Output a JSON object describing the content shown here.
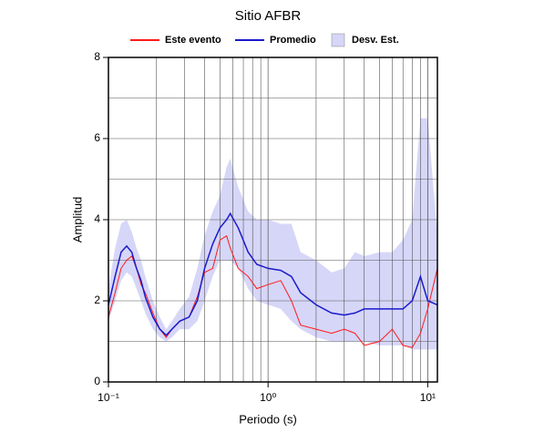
{
  "chart_data": {
    "type": "line",
    "title": "Sitio AFBR",
    "xlabel": "Periodo (s)",
    "ylabel": "Amplitud",
    "xscale": "log",
    "grid": true,
    "xlim": [
      0.1,
      11.5
    ],
    "ylim": [
      0,
      8
    ],
    "xticks": [
      {
        "value": 0.1,
        "label": "10⁻¹"
      },
      {
        "value": 1,
        "label": "10⁰"
      },
      {
        "value": 10,
        "label": "10¹"
      }
    ],
    "yticks": [
      0,
      2,
      4,
      6,
      8
    ],
    "x": [
      0.1,
      0.11,
      0.12,
      0.13,
      0.14,
      0.15,
      0.16,
      0.17,
      0.19,
      0.21,
      0.23,
      0.25,
      0.28,
      0.32,
      0.36,
      0.4,
      0.45,
      0.5,
      0.55,
      0.58,
      0.65,
      0.75,
      0.85,
      1.0,
      1.2,
      1.4,
      1.6,
      2.0,
      2.5,
      3.0,
      3.5,
      4.0,
      5,
      6,
      7,
      8,
      9,
      10,
      11.5
    ],
    "series": [
      {
        "name": "Este evento",
        "color": "#ff1a1a",
        "values": [
          1.6,
          2.2,
          2.8,
          3.0,
          3.1,
          2.8,
          2.4,
          2.2,
          1.7,
          1.3,
          1.1,
          1.3,
          1.5,
          1.6,
          2.1,
          2.7,
          2.8,
          3.5,
          3.6,
          3.3,
          2.8,
          2.6,
          2.3,
          2.4,
          2.5,
          2.0,
          1.4,
          1.3,
          1.2,
          1.3,
          1.2,
          0.9,
          1.0,
          1.3,
          0.9,
          0.85,
          1.2,
          1.8,
          2.8
        ]
      },
      {
        "name": "Promedio",
        "color": "#1a1acc",
        "values": [
          1.9,
          2.6,
          3.2,
          3.35,
          3.2,
          2.8,
          2.5,
          2.1,
          1.6,
          1.3,
          1.15,
          1.3,
          1.5,
          1.6,
          2.0,
          2.8,
          3.4,
          3.8,
          4.0,
          4.15,
          3.8,
          3.2,
          2.9,
          2.8,
          2.75,
          2.6,
          2.2,
          1.9,
          1.7,
          1.65,
          1.7,
          1.8,
          1.8,
          1.8,
          1.8,
          2.0,
          2.6,
          2.0,
          1.9
        ]
      },
      {
        "name": "Desv. Est.",
        "color": "#d6d6f8",
        "upper": [
          2.3,
          3.3,
          3.9,
          4.0,
          3.7,
          3.3,
          3.0,
          2.6,
          2.0,
          1.6,
          1.3,
          1.5,
          1.8,
          2.1,
          2.8,
          3.6,
          4.2,
          4.6,
          5.3,
          5.5,
          4.8,
          4.2,
          4.0,
          4.0,
          3.9,
          3.9,
          3.2,
          3.0,
          2.7,
          2.8,
          3.2,
          3.1,
          3.2,
          3.2,
          3.5,
          4.0,
          6.5,
          6.5,
          3.6
        ],
        "lower": [
          1.5,
          2.0,
          2.5,
          2.7,
          2.6,
          2.3,
          2.0,
          1.7,
          1.3,
          1.1,
          1.0,
          1.1,
          1.3,
          1.3,
          1.5,
          2.0,
          2.6,
          3.0,
          3.0,
          3.0,
          2.8,
          2.3,
          2.0,
          1.9,
          1.8,
          1.5,
          1.3,
          1.1,
          1.0,
          1.0,
          1.0,
          1.0,
          0.9,
          0.9,
          0.9,
          0.8,
          0.8,
          0.8,
          0.8
        ]
      }
    ]
  }
}
